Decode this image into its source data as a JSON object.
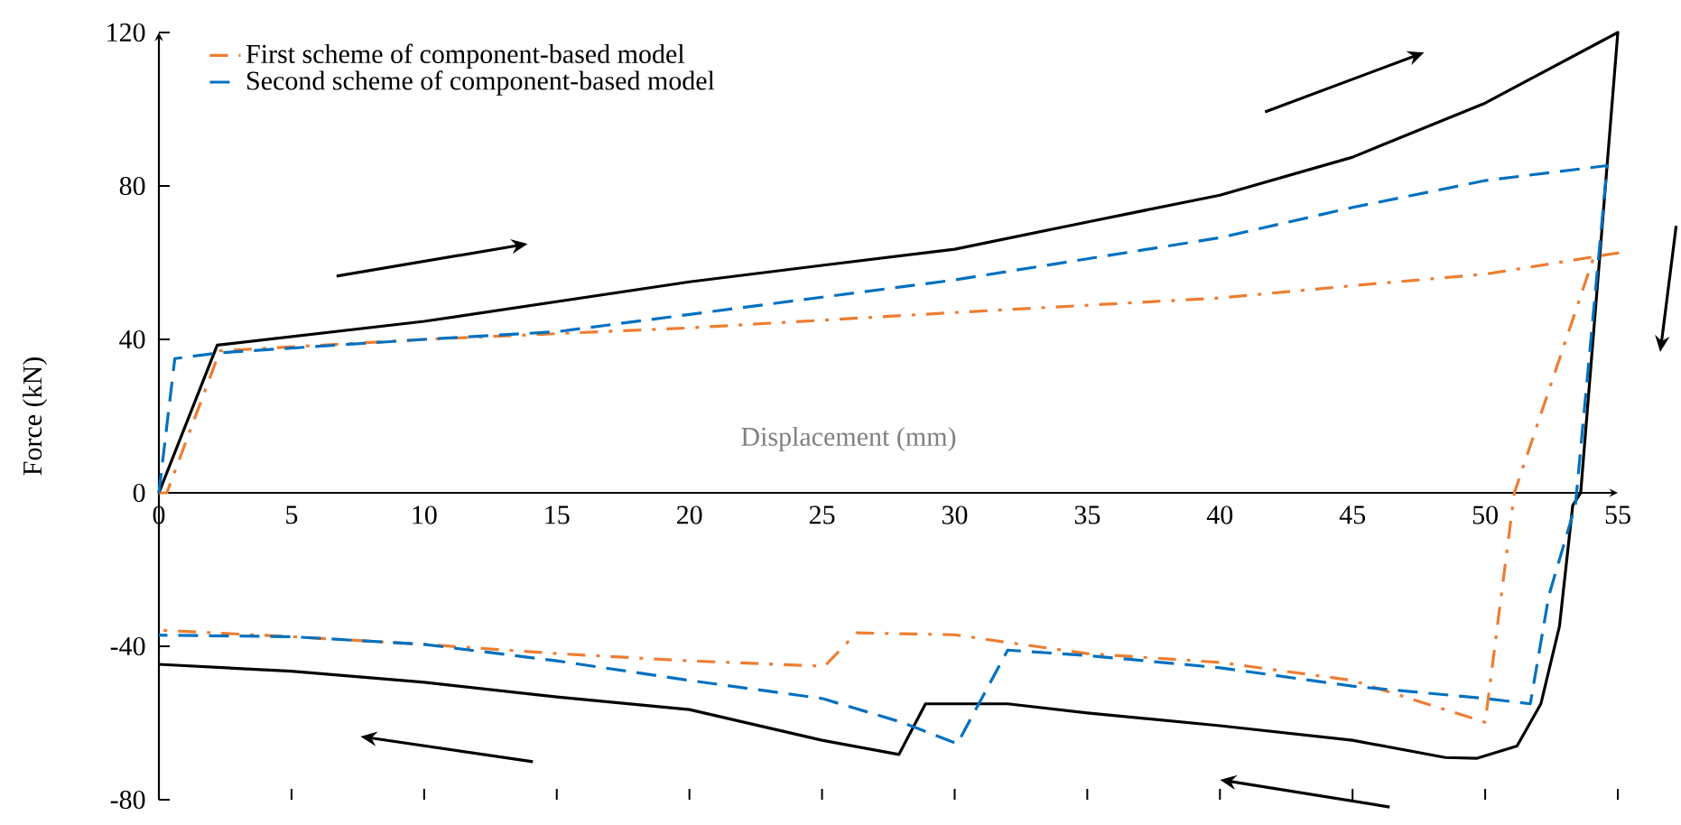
{
  "chart_data": {
    "type": "line",
    "xlabel": "Displacement  (mm)",
    "ylabel": "Force (kN)",
    "xlim": [
      0,
      55
    ],
    "ylim": [
      -80,
      120
    ],
    "xticks": [
      0,
      5,
      10,
      15,
      20,
      25,
      30,
      35,
      40,
      45,
      50,
      55
    ],
    "yticks": [
      -80,
      -40,
      0,
      40,
      80,
      120
    ],
    "grid": false,
    "legend": "top left",
    "series": [
      {
        "color": "#000000",
        "line_style": "solid",
        "x": [
          0,
          2.2,
          10,
          20,
          25,
          30,
          35,
          40,
          45,
          50,
          55,
          53.6,
          53.3,
          52.8,
          52.1,
          51.2,
          49.7,
          48.5,
          45,
          40,
          35,
          32,
          28.9,
          27.9,
          25,
          20,
          15,
          10,
          5,
          0
        ],
        "values": [
          0,
          38.5,
          44.7,
          55,
          59.3,
          63.5,
          70.6,
          77.6,
          87.5,
          101.6,
          120,
          0,
          -3.3,
          -34.8,
          -55,
          -66,
          -69.2,
          -69,
          -64.5,
          -60.7,
          -57.4,
          -55,
          -55,
          -68.2,
          -64.5,
          -56.5,
          -53.2,
          -49.4,
          -46.5,
          -44.7
        ]
      },
      {
        "name": "First scheme of component-based model",
        "color": "#ed7d31",
        "line_style": "dashdot",
        "x": [
          0,
          0.3,
          2.3,
          10,
          20,
          25,
          30,
          40,
          45,
          50,
          55,
          54.1,
          51.1,
          50,
          45,
          40,
          35,
          32,
          30,
          26.3,
          25.1,
          20,
          15,
          10,
          5,
          0
        ],
        "values": [
          0,
          0,
          37,
          40,
          43,
          45,
          47,
          50.8,
          54,
          57,
          62.5,
          61.6,
          0,
          -59.8,
          -48.9,
          -44.2,
          -41.9,
          -39,
          -37,
          -36.5,
          -45.2,
          -43.8,
          -41.9,
          -39.5,
          -37.5,
          -35.8
        ]
      },
      {
        "name": "Second scheme of component-based model",
        "color": "#0070c0",
        "line_style": "dashed",
        "x": [
          0,
          0.6,
          2.3,
          10,
          15,
          20,
          25,
          30,
          35,
          40,
          45,
          50,
          54.6,
          53.4,
          52.4,
          51.7,
          50,
          45,
          40,
          35,
          32,
          30.1,
          28,
          25,
          20,
          15,
          10,
          5,
          0
        ],
        "values": [
          0,
          35,
          36.5,
          40,
          42,
          46.5,
          51,
          55.5,
          61,
          66.5,
          74.4,
          81.4,
          85.3,
          -3.3,
          -26.8,
          -55,
          -53.6,
          -50.4,
          -45.6,
          -42.4,
          -41,
          -65.4,
          -59.8,
          -53.6,
          -48.9,
          -43.8,
          -39.5,
          -37.5,
          -37.1
        ]
      }
    ]
  }
}
